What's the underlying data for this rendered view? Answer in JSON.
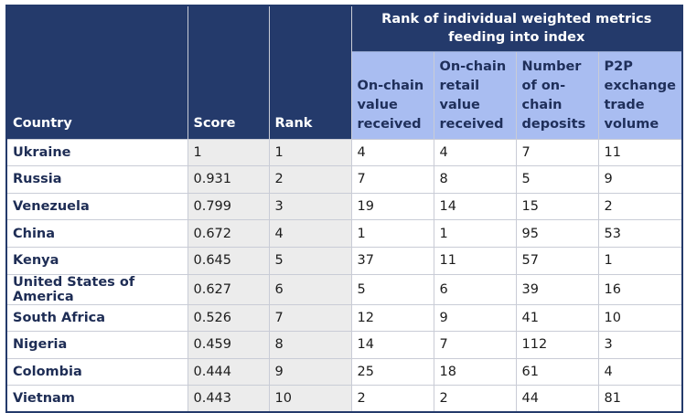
{
  "chart_data": {
    "type": "table",
    "group_header": "Rank of individual weighted metrics feeding into index",
    "columns": [
      "Country",
      "Score",
      "Rank",
      "On-chain value received",
      "On-chain retail value received",
      "Number of on-chain deposits",
      "P2P exchange trade volume"
    ],
    "rows": [
      [
        "Ukraine",
        "1",
        "1",
        "4",
        "4",
        "7",
        "11"
      ],
      [
        "Russia",
        "0.931",
        "2",
        "7",
        "8",
        "5",
        "9"
      ],
      [
        "Venezuela",
        "0.799",
        "3",
        "19",
        "14",
        "15",
        "2"
      ],
      [
        "China",
        "0.672",
        "4",
        "1",
        "1",
        "95",
        "53"
      ],
      [
        "Kenya",
        "0.645",
        "5",
        "37",
        "11",
        "57",
        "1"
      ],
      [
        "United States of America",
        "0.627",
        "6",
        "5",
        "6",
        "39",
        "16"
      ],
      [
        "South Africa",
        "0.526",
        "7",
        "12",
        "9",
        "41",
        "10"
      ],
      [
        "Nigeria",
        "0.459",
        "8",
        "14",
        "7",
        "112",
        "3"
      ],
      [
        "Colombia",
        "0.444",
        "9",
        "25",
        "18",
        "61",
        "4"
      ],
      [
        "Vietnam",
        "0.443",
        "10",
        "2",
        "2",
        "44",
        "81"
      ]
    ]
  },
  "colors": {
    "header_dark": "#243a6b",
    "header_light": "#a9bdf1",
    "shaded_cell": "#ececec"
  }
}
